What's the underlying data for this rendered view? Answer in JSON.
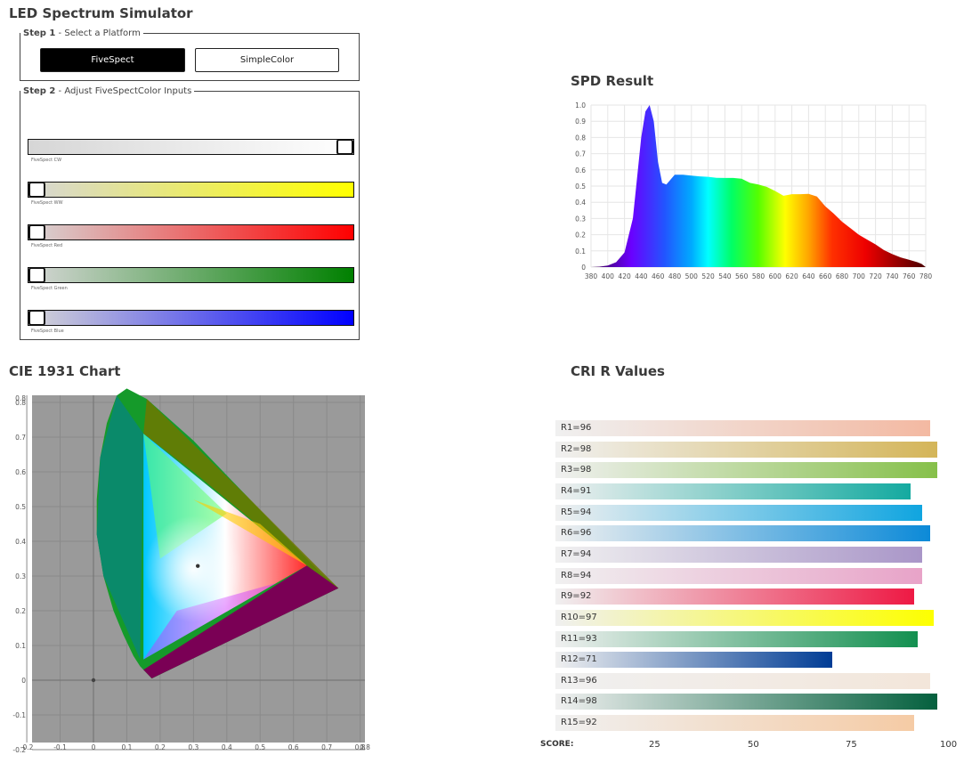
{
  "app": {
    "title": "LED Spectrum Simulator"
  },
  "step1": {
    "legend_bold": "Step 1",
    "legend_text": " - Select a Platform",
    "buttons": [
      {
        "label": "FiveSpect",
        "selected": true
      },
      {
        "label": "SimpleColor",
        "selected": false
      }
    ]
  },
  "step2": {
    "legend_bold": "Step 2",
    "legend_text": " - Adjust FiveSpectColor Inputs",
    "sliders": [
      {
        "label": "FiveSpect CW",
        "value": 1.0,
        "color": "#ffffff"
      },
      {
        "label": "FiveSpect WW",
        "value": 0.0,
        "color": "#ffff00"
      },
      {
        "label": "FiveSpect Red",
        "value": 0.0,
        "color": "#ff0000"
      },
      {
        "label": "FiveSpect Green",
        "value": 0.0,
        "color": "#008000"
      },
      {
        "label": "FiveSpect Blue",
        "value": 0.0,
        "color": "#0000ff"
      }
    ]
  },
  "spd": {
    "title": "SPD Result",
    "chart_data": {
      "type": "area",
      "x": [
        380,
        390,
        400,
        410,
        420,
        430,
        440,
        445,
        450,
        455,
        460,
        465,
        470,
        480,
        490,
        500,
        510,
        520,
        530,
        540,
        550,
        560,
        570,
        580,
        590,
        600,
        610,
        620,
        630,
        640,
        650,
        660,
        670,
        680,
        690,
        700,
        710,
        720,
        730,
        740,
        750,
        760,
        770,
        775,
        780
      ],
      "y": [
        0.0,
        0.003,
        0.01,
        0.03,
        0.09,
        0.3,
        0.8,
        0.96,
        1.0,
        0.9,
        0.65,
        0.52,
        0.51,
        0.57,
        0.57,
        0.565,
        0.56,
        0.557,
        0.551,
        0.55,
        0.55,
        0.545,
        0.52,
        0.51,
        0.495,
        0.47,
        0.44,
        0.45,
        0.45,
        0.452,
        0.435,
        0.375,
        0.33,
        0.28,
        0.24,
        0.2,
        0.17,
        0.14,
        0.105,
        0.08,
        0.06,
        0.045,
        0.03,
        0.02,
        0.0
      ],
      "xlim": [
        380,
        780
      ],
      "ylim": [
        0,
        1.0
      ],
      "x_ticks": [
        "380",
        "400",
        "420",
        "440",
        "460",
        "480",
        "500",
        "520",
        "540",
        "560",
        "580",
        "600",
        "620",
        "640",
        "660",
        "680",
        "700",
        "720",
        "740",
        "760",
        "780"
      ],
      "y_ticks": [
        "0",
        "0.1",
        "0.2",
        "0.3",
        "0.4",
        "0.5",
        "0.6",
        "0.7",
        "0.8",
        "0.9",
        "1.0"
      ],
      "grid": true
    }
  },
  "cie": {
    "title": "CIE 1931 Chart",
    "x_ticks": [
      "-0.2",
      "-0.1",
      "0",
      "0.1",
      "0.2",
      "0.3",
      "0.4",
      "0.5",
      "0.6",
      "0.7",
      "0.8",
      "0.8"
    ],
    "y_ticks": [
      "0.8",
      "0.8",
      "0.7",
      "0.6",
      "0.5",
      "0.4",
      "0.3",
      "0.2",
      "0.1",
      "0",
      "-0.1",
      "-0.2"
    ],
    "white_point": {
      "x": 0.313,
      "y": 0.329
    },
    "origin_point": {
      "x": 0,
      "y": 0
    }
  },
  "cri": {
    "title": "CRI R Values",
    "chart_data": {
      "type": "bar",
      "categories": [
        "R1",
        "R2",
        "R3",
        "R4",
        "R5",
        "R6",
        "R7",
        "R8",
        "R9",
        "R10",
        "R11",
        "R12",
        "R13",
        "R14",
        "R15"
      ],
      "values": [
        96,
        98,
        98,
        91,
        94,
        96,
        94,
        94,
        92,
        97,
        93,
        71,
        96,
        98,
        92
      ],
      "labels": [
        "R1=96",
        "R2=98",
        "R3=98",
        "R4=91",
        "R5=94",
        "R6=96",
        "R7=94",
        "R8=94",
        "R9=92",
        "R10=97",
        "R11=93",
        "R12=71",
        "R13=96",
        "R14=98",
        "R15=92"
      ],
      "colors": [
        "#f3b9a2",
        "#d4b559",
        "#86c04a",
        "#14aaa0",
        "#10a5e0",
        "#0c8ad8",
        "#a996c8",
        "#e8a3c8",
        "#ee1944",
        "#fdff00",
        "#139050",
        "#003c95",
        "#f3e6da",
        "#04603e",
        "#f5cba5"
      ],
      "xlabel": "SCORE:",
      "x_ticks": [
        "25",
        "50",
        "75",
        "100"
      ]
    }
  }
}
